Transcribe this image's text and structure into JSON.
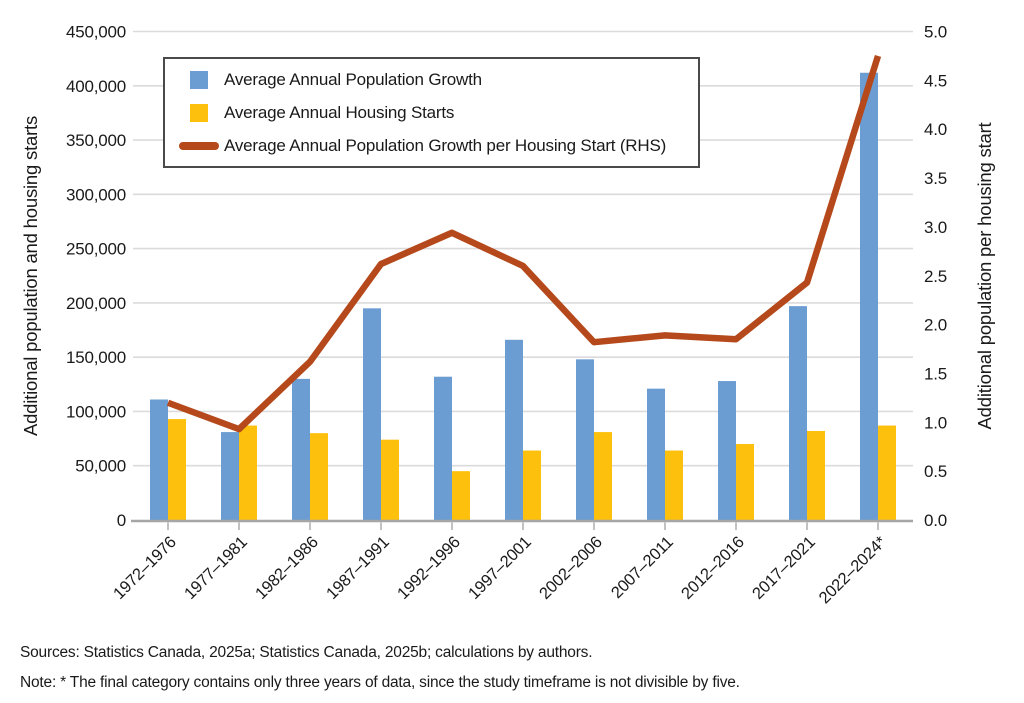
{
  "chart_data": {
    "type": "bar+line",
    "categories": [
      "1972–1976",
      "1977–1981",
      "1982–1986",
      "1987–1991",
      "1992–1996",
      "1997–2001",
      "2002–2006",
      "2007–2011",
      "2012–2016",
      "2017–2021",
      "2022–2024*"
    ],
    "series": [
      {
        "name": "Average Annual Population Growth",
        "type": "bar",
        "axis": "left",
        "color": "#6B9DD2",
        "values": [
          111000,
          81000,
          130000,
          195000,
          132000,
          166000,
          148000,
          121000,
          128000,
          197000,
          412000
        ]
      },
      {
        "name": "Average Annual Housing Starts",
        "type": "bar",
        "axis": "left",
        "color": "#FDC10D",
        "values": [
          93000,
          87000,
          80000,
          74000,
          45000,
          64000,
          81000,
          64000,
          70000,
          82000,
          87000
        ]
      },
      {
        "name": "Average Annual Population Growth per Housing Start (RHS)",
        "type": "line",
        "axis": "right",
        "color": "#B5491B",
        "values": [
          1.2,
          0.93,
          1.62,
          2.62,
          2.94,
          2.6,
          1.82,
          1.89,
          1.85,
          2.43,
          4.75
        ]
      }
    ],
    "left_axis": {
      "title": "Additional population and housing starts",
      "min": 0,
      "max": 450000,
      "step": 50000,
      "tick_format": "comma"
    },
    "right_axis": {
      "title": "Additional population per housing start",
      "min": 0,
      "max": 5.0,
      "step": 0.5,
      "tick_format": "one-decimal"
    },
    "grid": true,
    "legend_position": "top-left-inside"
  },
  "footer": {
    "sources": "Sources: Statistics Canada, 2025a; Statistics Canada, 2025b; calculations by authors.",
    "note": "Note: * The final category contains only three years of data, since the study timeframe is not divisible by five."
  },
  "colors": {
    "background": "#FFFFFF",
    "gridline": "#DBDBDB",
    "axis_line": "#A6A6A6",
    "tick_mark": "#B3B3B3",
    "text": "#1A1A1A",
    "legend_border": "#4A4A4A"
  }
}
